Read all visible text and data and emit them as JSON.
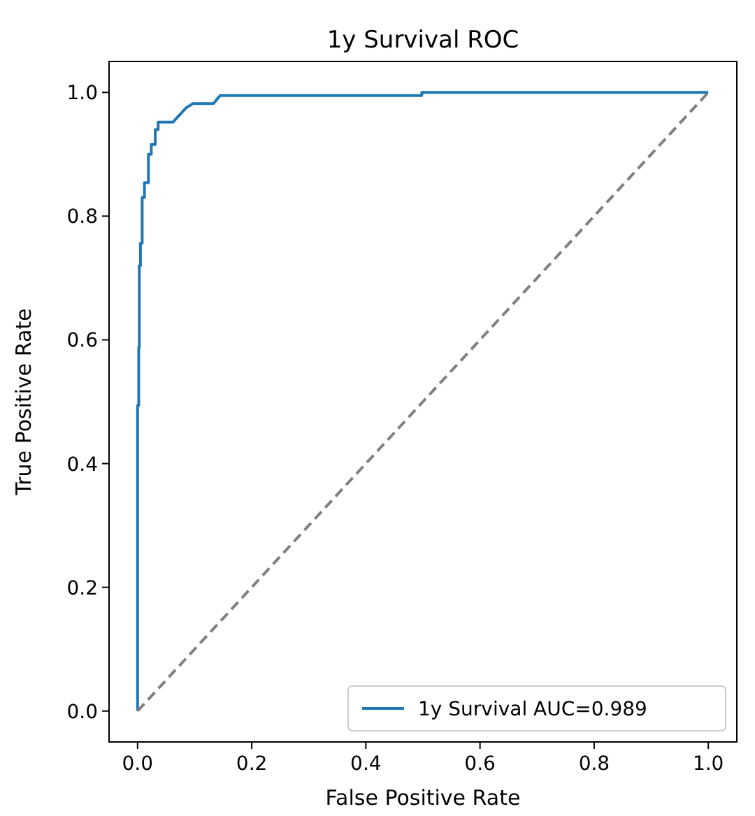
{
  "chart_data": {
    "type": "line",
    "title": "1y Survival ROC",
    "xlabel": "False Positive Rate",
    "ylabel": "True Positive Rate",
    "xlim": [
      -0.05,
      1.05
    ],
    "ylim": [
      -0.05,
      1.05
    ],
    "xticks": [
      {
        "value": 0,
        "label": "0.0"
      },
      {
        "value": 0.2,
        "label": "0.2"
      },
      {
        "value": 0.4,
        "label": "0.4"
      },
      {
        "value": 0.6,
        "label": "0.6"
      },
      {
        "value": 0.8,
        "label": "0.8"
      },
      {
        "value": 1,
        "label": "1.0"
      }
    ],
    "yticks": [
      {
        "value": 0,
        "label": "0.0"
      },
      {
        "value": 0.2,
        "label": "0.2"
      },
      {
        "value": 0.4,
        "label": "0.4"
      },
      {
        "value": 0.6,
        "label": "0.6"
      },
      {
        "value": 0.8,
        "label": "0.8"
      },
      {
        "value": 1,
        "label": "1.0"
      }
    ],
    "legend": "bottom right",
    "grid": false,
    "series": [
      {
        "name": "1y Survival AUC=0.989",
        "color": "#1f77b4",
        "line_style": "solid",
        "x": [
          0,
          0,
          0.002,
          0.002,
          0.003,
          0.003,
          0.005,
          0.005,
          0.008,
          0.008,
          0.012,
          0.012,
          0.019,
          0.019,
          0.024,
          0.024,
          0.031,
          0.031,
          0.036,
          0.036,
          0.062,
          0.07,
          0.078,
          0.085,
          0.097,
          0.133,
          0.14,
          0.145,
          0.498,
          0.498,
          1
        ],
        "values": [
          0,
          0.494,
          0.494,
          0.588,
          0.588,
          0.72,
          0.72,
          0.756,
          0.756,
          0.83,
          0.83,
          0.854,
          0.854,
          0.9,
          0.9,
          0.916,
          0.916,
          0.94,
          0.94,
          0.952,
          0.952,
          0.96,
          0.968,
          0.975,
          0.982,
          0.982,
          0.99,
          0.995,
          0.995,
          1,
          1
        ]
      },
      {
        "color": "#808080",
        "line_style": "dashed",
        "x": [
          0,
          1
        ],
        "values": [
          0,
          1
        ]
      }
    ]
  }
}
